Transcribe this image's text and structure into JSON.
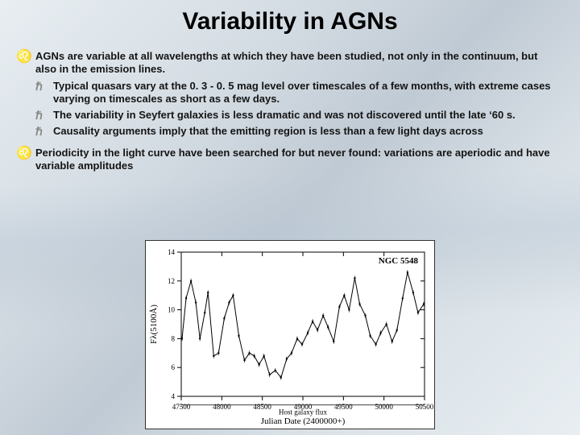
{
  "title": "Variability in AGNs",
  "bullets": [
    {
      "text": "AGNs are variable at all wavelengths at which they have been studied, not only in the continuum, but also in the emission lines.",
      "sub": [
        "Typical quasars vary at the 0. 3 - 0. 5 mag level over timescales of a few months, with extreme cases varying on timescales as short as a few days.",
        "The variability in Seyfert galaxies is less dramatic and was not discovered until the late ‘60 s.",
        "Causality arguments imply that the emitting region is less than a few light days across"
      ]
    },
    {
      "text": "Periodicity in the light curve have been searched for but never found: variations are aperiodic and have variable amplitudes",
      "sub": []
    }
  ],
  "chart": {
    "type": "line",
    "title": "NGC 5548",
    "xlabel": "Julian Date (2400000+)",
    "ylabel": "Fλ(5100Å)",
    "xlim": [
      47500,
      50500
    ],
    "ylim": [
      4,
      14
    ],
    "xticks": [
      47500,
      48000,
      48500,
      49000,
      49500,
      50000,
      50500
    ],
    "yticks": [
      4,
      6,
      8,
      10,
      12,
      14
    ],
    "label_fontsize": 11,
    "tick_fontsize": 9,
    "title_fontsize": 11,
    "line_color": "#000000",
    "grid_color": "#000000",
    "background_color": "#ffffff",
    "host_flux_y": 3.4,
    "host_flux_label": "Host galaxy flux",
    "series": [
      [
        47510,
        8.0
      ],
      [
        47560,
        10.8
      ],
      [
        47620,
        12.0
      ],
      [
        47680,
        10.5
      ],
      [
        47730,
        8.0
      ],
      [
        47790,
        9.8
      ],
      [
        47830,
        11.2
      ],
      [
        47900,
        6.8
      ],
      [
        47960,
        7.0
      ],
      [
        48030,
        9.4
      ],
      [
        48090,
        10.5
      ],
      [
        48140,
        11.0
      ],
      [
        48210,
        8.2
      ],
      [
        48280,
        6.5
      ],
      [
        48340,
        7.0
      ],
      [
        48400,
        6.8
      ],
      [
        48460,
        6.2
      ],
      [
        48520,
        6.8
      ],
      [
        48590,
        5.5
      ],
      [
        48660,
        5.8
      ],
      [
        48730,
        5.3
      ],
      [
        48800,
        6.6
      ],
      [
        48860,
        7.0
      ],
      [
        48930,
        8.0
      ],
      [
        48990,
        7.6
      ],
      [
        49060,
        8.4
      ],
      [
        49120,
        9.2
      ],
      [
        49180,
        8.6
      ],
      [
        49250,
        9.6
      ],
      [
        49310,
        8.8
      ],
      [
        49380,
        7.8
      ],
      [
        49450,
        10.2
      ],
      [
        49510,
        11.0
      ],
      [
        49570,
        10.0
      ],
      [
        49640,
        12.2
      ],
      [
        49700,
        10.4
      ],
      [
        49770,
        9.6
      ],
      [
        49830,
        8.2
      ],
      [
        49900,
        7.6
      ],
      [
        49960,
        8.4
      ],
      [
        50030,
        9.0
      ],
      [
        50100,
        7.8
      ],
      [
        50160,
        8.6
      ],
      [
        50230,
        10.8
      ],
      [
        50290,
        12.6
      ],
      [
        50360,
        11.2
      ],
      [
        50420,
        9.8
      ],
      [
        50490,
        10.4
      ]
    ]
  },
  "colors": {
    "bullet_icon": "#888888",
    "text": "#141414"
  }
}
